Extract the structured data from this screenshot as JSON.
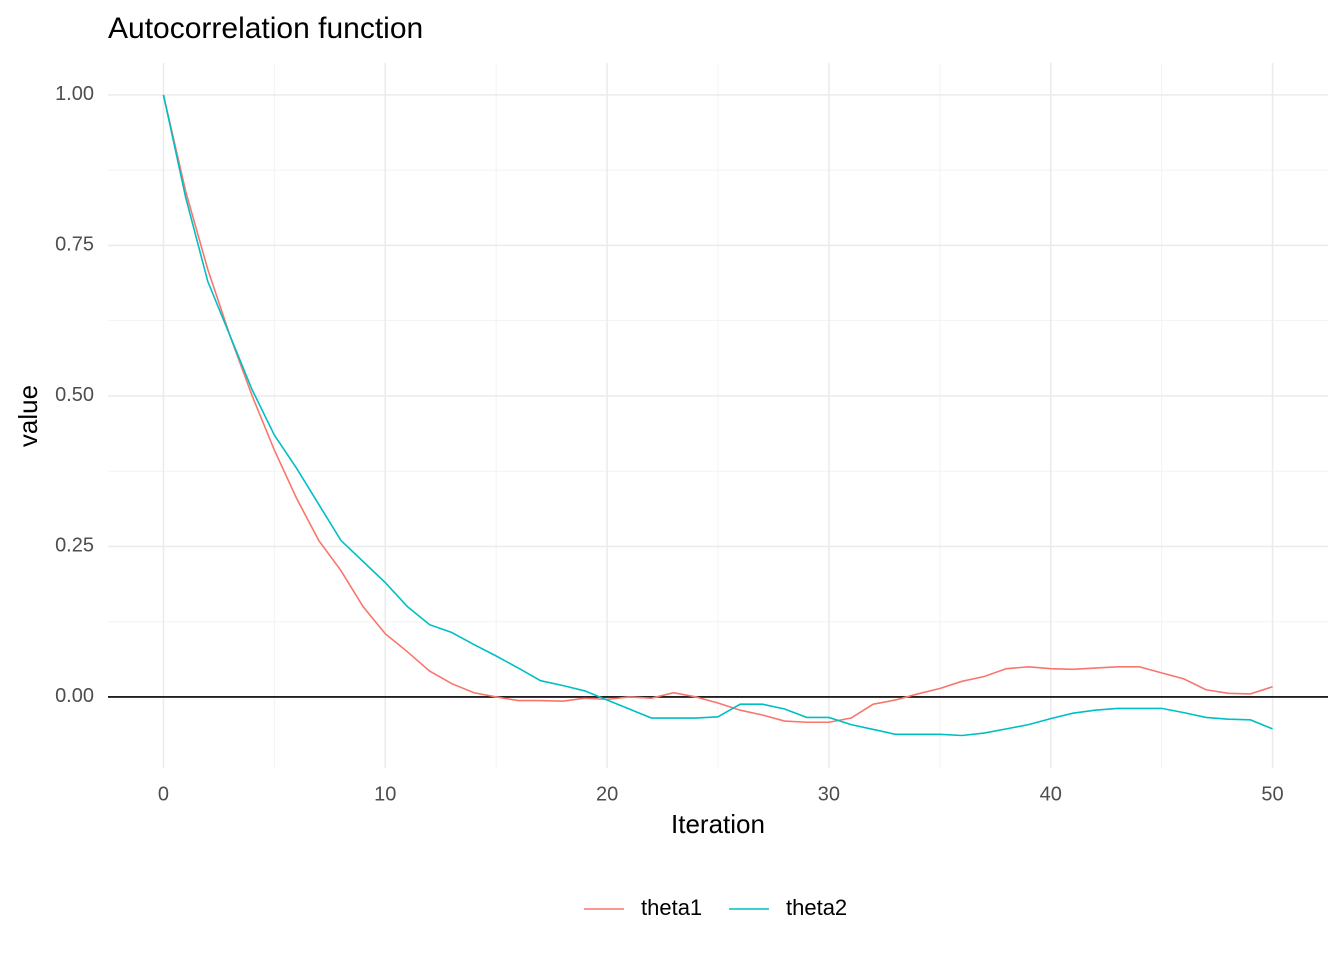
{
  "chart_data": {
    "type": "line",
    "title": "Autocorrelation function",
    "x_label": "Iteration",
    "y_label": "value",
    "x": [
      0,
      1,
      2,
      3,
      4,
      5,
      6,
      7,
      8,
      9,
      10,
      11,
      12,
      13,
      14,
      15,
      16,
      17,
      18,
      19,
      20,
      21,
      22,
      23,
      24,
      25,
      26,
      27,
      28,
      29,
      30,
      31,
      32,
      33,
      34,
      35,
      36,
      37,
      38,
      39,
      40,
      41,
      42,
      43,
      44,
      45,
      46,
      47,
      48,
      49,
      50
    ],
    "series": [
      {
        "name": "theta1",
        "color": "#F8766D",
        "values": [
          1.0,
          0.84,
          0.71,
          0.6,
          0.5,
          0.41,
          0.33,
          0.26,
          0.21,
          0.15,
          0.105,
          0.075,
          0.043,
          0.022,
          0.007,
          0.0,
          -0.006,
          -0.006,
          -0.007,
          -0.002,
          -0.004,
          0.0,
          -0.002,
          0.007,
          0.0,
          -0.01,
          -0.022,
          -0.03,
          -0.04,
          -0.042,
          -0.042,
          -0.035,
          -0.012,
          -0.005,
          0.005,
          0.014,
          0.026,
          0.034,
          0.047,
          0.05,
          0.047,
          0.046,
          0.048,
          0.05,
          0.05,
          0.04,
          0.03,
          0.012,
          0.006,
          0.005,
          0.017
        ]
      },
      {
        "name": "theta2",
        "color": "#00BFC4",
        "values": [
          1.0,
          0.83,
          0.69,
          0.6,
          0.51,
          0.435,
          0.38,
          0.32,
          0.26,
          0.225,
          0.19,
          0.15,
          0.12,
          0.107,
          0.087,
          0.068,
          0.048,
          0.027,
          0.019,
          0.01,
          -0.005,
          -0.02,
          -0.035,
          -0.035,
          -0.035,
          -0.033,
          -0.012,
          -0.012,
          -0.02,
          -0.034,
          -0.034,
          -0.046,
          -0.054,
          -0.062,
          -0.062,
          -0.062,
          -0.064,
          -0.06,
          -0.053,
          -0.046,
          -0.036,
          -0.027,
          -0.022,
          -0.019,
          -0.019,
          -0.019,
          -0.026,
          -0.034,
          -0.037,
          -0.038,
          -0.053
        ]
      }
    ],
    "xlim": [
      -2.5,
      52.5
    ],
    "ylim": [
      -0.118,
      1.053
    ],
    "xticks": [
      0,
      10,
      20,
      30,
      40,
      50
    ],
    "yticks": [
      {
        "value": 0,
        "label": "0.00"
      },
      {
        "value": 0.25,
        "label": "0.25"
      },
      {
        "value": 0.5,
        "label": "0.50"
      },
      {
        "value": 0.75,
        "label": "0.75"
      },
      {
        "value": 1,
        "label": "1.00"
      }
    ],
    "reference_line": 0,
    "grid": true,
    "legend": "bottom"
  }
}
